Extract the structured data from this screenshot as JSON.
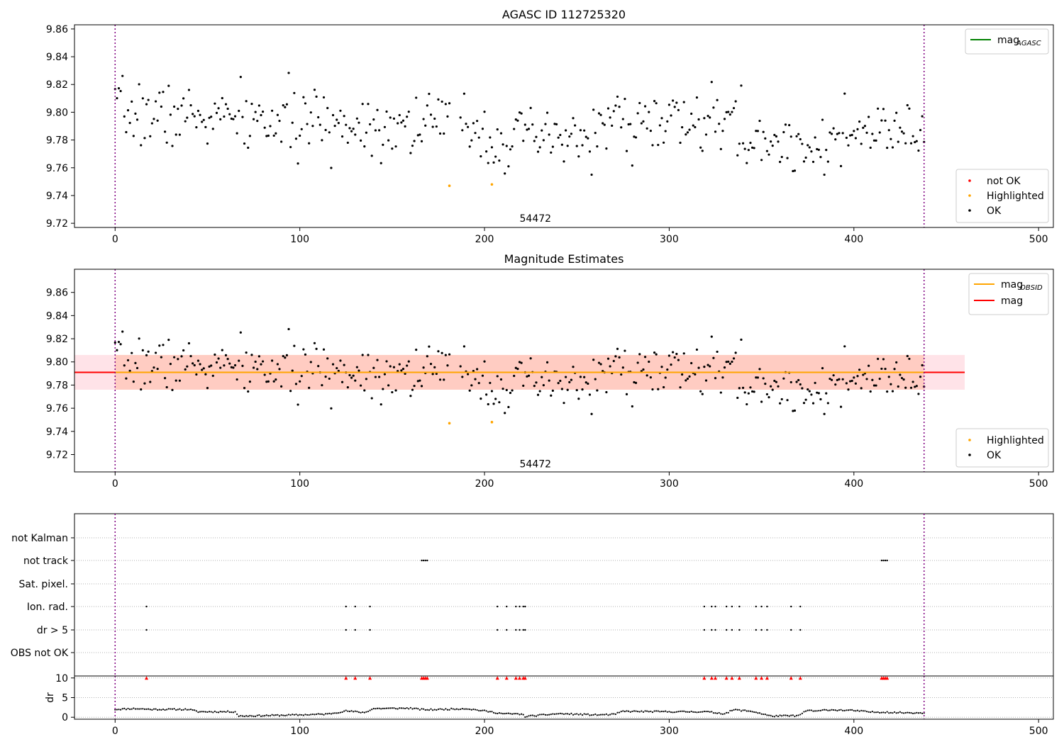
{
  "colors": {
    "ok": "#000000",
    "not_ok": "#ff0000",
    "highlighted": "#ffa500",
    "mag_agasc": "#008000",
    "mag_obsid": "#ffa500",
    "mag": "#ff0000",
    "obs_boundary": "#800080",
    "band_pink": "#ffc0cb",
    "band_orange": "#ffa07a",
    "flag_marker": "#ff0000",
    "grid": "#b0b0b0"
  },
  "chart_data": [
    {
      "type": "scatter",
      "title": "AGASC ID 112725320",
      "xlim": [
        -22,
        508
      ],
      "ylim": [
        9.717,
        9.863
      ],
      "xticks": [
        0,
        100,
        200,
        300,
        400,
        500
      ],
      "xtick_labels": [
        "0",
        "100",
        "200",
        "300",
        "400",
        "500"
      ],
      "yticks": [
        9.72,
        9.74,
        9.76,
        9.78,
        9.8,
        9.82,
        9.84,
        9.86
      ],
      "ytick_labels": [
        "9.72",
        "9.74",
        "9.76",
        "9.78",
        "9.80",
        "9.82",
        "9.84",
        "9.86"
      ],
      "annotation": {
        "text": "54472",
        "x": 219,
        "y": 9.721
      },
      "obs_boundaries": [
        0,
        438
      ],
      "series_seed": 7,
      "highlighted_points": [
        {
          "x": 181,
          "y": 9.747
        },
        {
          "x": 204,
          "y": 9.748
        }
      ],
      "legend_lines": [
        {
          "label": "mag",
          "sub": "AGASC",
          "color_key": "mag_agasc"
        }
      ],
      "legend_points": [
        {
          "label": "not OK",
          "color_key": "not_ok"
        },
        {
          "label": "Highlighted",
          "color_key": "highlighted"
        },
        {
          "label": "OK",
          "color_key": "ok"
        }
      ]
    },
    {
      "type": "scatter",
      "title": "Magnitude Estimates",
      "xlim": [
        -22,
        508
      ],
      "ylim": [
        9.705,
        9.88
      ],
      "xticks": [
        0,
        100,
        200,
        300,
        400,
        500
      ],
      "xtick_labels": [
        "0",
        "100",
        "200",
        "300",
        "400",
        "500"
      ],
      "yticks": [
        9.72,
        9.74,
        9.76,
        9.78,
        9.8,
        9.82,
        9.84,
        9.86
      ],
      "ytick_labels": [
        "9.72",
        "9.74",
        "9.76",
        "9.78",
        "9.80",
        "9.82",
        "9.84",
        "9.86"
      ],
      "annotation": {
        "text": "54472",
        "x": 219,
        "y": 9.709
      },
      "obs_boundaries": [
        0,
        438
      ],
      "mag_line": {
        "value": 9.791,
        "x0": -22,
        "x1": 460
      },
      "mag_obsid_line": {
        "value": 9.791,
        "x0": 0,
        "x1": 438
      },
      "band": {
        "lo": 9.776,
        "hi": 9.806,
        "x0": -22,
        "x1": 460
      },
      "band_obsid": {
        "lo": 9.776,
        "hi": 9.806,
        "x0": 0,
        "x1": 438
      },
      "highlighted_points": [
        {
          "x": 181,
          "y": 9.747
        },
        {
          "x": 204,
          "y": 9.748
        }
      ],
      "legend_lines": [
        {
          "label": "mag",
          "sub": "OBSID",
          "color_key": "mag_obsid"
        },
        {
          "label": "mag",
          "sub": "",
          "color_key": "mag"
        }
      ],
      "legend_points": [
        {
          "label": "Highlighted",
          "color_key": "highlighted"
        },
        {
          "label": "OK",
          "color_key": "ok"
        }
      ]
    },
    {
      "type": "scatter",
      "title": "",
      "xlim": [
        -22,
        508
      ],
      "flag_labels": [
        "not Kalman",
        "not track",
        "Sat. pixel.",
        "Ion. rad.",
        "dr > 5",
        "OBS not OK"
      ],
      "flags": {
        "not_track": [
          166,
          167,
          168,
          169,
          415,
          416,
          417,
          418
        ],
        "ion_rad": [
          17,
          125,
          130,
          138,
          207,
          212,
          217,
          219,
          221,
          222,
          319,
          323,
          325,
          331,
          334,
          338,
          347,
          350,
          353,
          366,
          371
        ],
        "dr_gt_5": [
          17,
          125,
          130,
          138,
          207,
          212,
          217,
          219,
          221,
          222,
          319,
          323,
          325,
          331,
          334,
          338,
          347,
          350,
          353,
          366,
          371
        ]
      },
      "dr_markers": [
        17,
        125,
        130,
        138,
        166,
        167,
        168,
        169,
        207,
        212,
        217,
        219,
        221,
        222,
        319,
        323,
        325,
        331,
        334,
        338,
        347,
        350,
        353,
        366,
        371,
        415,
        416,
        417,
        418
      ],
      "dr_ylim": [
        -0.5,
        10.5
      ],
      "dr_yticks": [
        0,
        5,
        10
      ],
      "dr_ytick_labels": [
        "0",
        "5",
        "10"
      ],
      "ylabel": "dr",
      "xticks": [
        0,
        100,
        200,
        300,
        400,
        500
      ],
      "xtick_labels": [
        "0",
        "100",
        "200",
        "300",
        "400",
        "500"
      ],
      "obs_boundaries": [
        0,
        438
      ],
      "dr_profile": [
        [
          0,
          2.0
        ],
        [
          10,
          2.2
        ],
        [
          20,
          2.0
        ],
        [
          40,
          2.0
        ],
        [
          45,
          1.4
        ],
        [
          65,
          1.4
        ],
        [
          67,
          0.3
        ],
        [
          100,
          0.6
        ],
        [
          115,
          0.8
        ],
        [
          125,
          1.6
        ],
        [
          135,
          1.2
        ],
        [
          140,
          2.2
        ],
        [
          160,
          2.3
        ],
        [
          165,
          2.0
        ],
        [
          170,
          1.9
        ],
        [
          190,
          2.2
        ],
        [
          200,
          1.6
        ],
        [
          210,
          0.9
        ],
        [
          220,
          0.8
        ],
        [
          222,
          0.2
        ],
        [
          240,
          0.9
        ],
        [
          260,
          0.6
        ],
        [
          270,
          0.7
        ],
        [
          275,
          1.5
        ],
        [
          300,
          1.4
        ],
        [
          320,
          1.4
        ],
        [
          330,
          0.9
        ],
        [
          335,
          1.9
        ],
        [
          345,
          1.5
        ],
        [
          355,
          0.3
        ],
        [
          370,
          0.4
        ],
        [
          375,
          1.8
        ],
        [
          380,
          1.5
        ],
        [
          385,
          1.9
        ],
        [
          400,
          1.7
        ],
        [
          410,
          1.3
        ],
        [
          418,
          1.3
        ],
        [
          420,
          1.2
        ],
        [
          438,
          1.1
        ]
      ],
      "dr_gap": [
        [
          360,
          373
        ]
      ]
    }
  ]
}
